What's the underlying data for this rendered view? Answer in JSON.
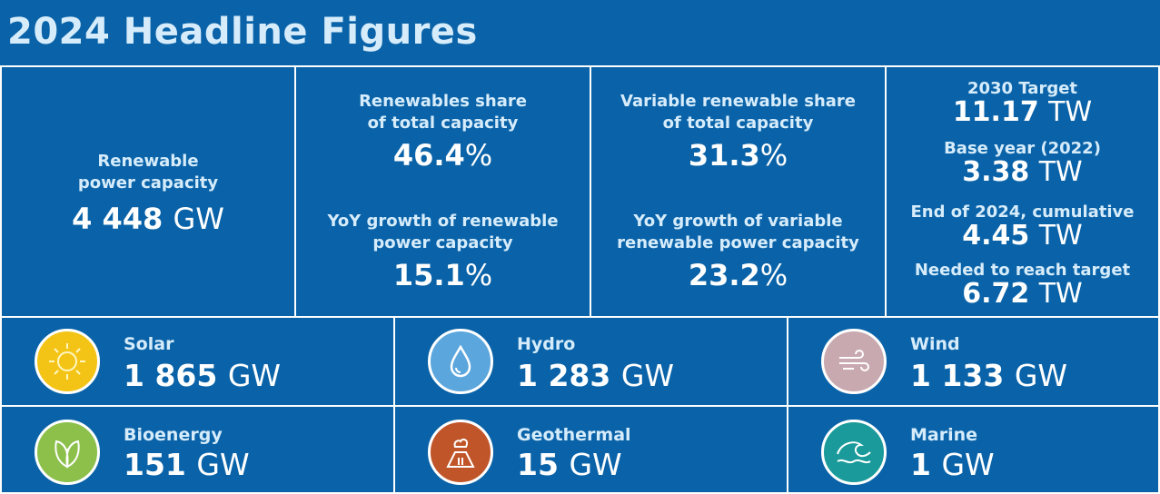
{
  "title": "2024 Headline Figures",
  "capacity": {
    "label_line1": "Renewable",
    "label_line2": "power capacity",
    "value": "4 448",
    "unit": "GW"
  },
  "share": {
    "label_line1": "Renewables share",
    "label_line2": "of total capacity",
    "value": "46.4",
    "unit": "%",
    "growth_label_line1": "YoY growth of renewable",
    "growth_label_line2": "power capacity",
    "growth_value": "15.1",
    "growth_unit": "%"
  },
  "variable": {
    "label_line1": "Variable renewable share",
    "label_line2": "of total capacity",
    "value": "31.3",
    "unit": "%",
    "growth_label_line1": "YoY growth of variable",
    "growth_label_line2": "renewable power capacity",
    "growth_value": "23.2",
    "growth_unit": "%"
  },
  "targets": [
    {
      "label": "2030 Target",
      "value": "11.17",
      "unit": "TW"
    },
    {
      "label": "Base year (2022)",
      "value": "3.38",
      "unit": "TW"
    },
    {
      "label": "End of 2024, cumulative",
      "value": "4.45",
      "unit": "TW"
    },
    {
      "label": "Needed to reach target",
      "value": "6.72",
      "unit": "TW"
    }
  ],
  "sources": [
    {
      "name": "Solar",
      "value": "1 865",
      "unit": "GW",
      "icon": "sun-icon",
      "color": "#f3c316"
    },
    {
      "name": "Hydro",
      "value": "1 283",
      "unit": "GW",
      "icon": "water-drop-icon",
      "color": "#5aa6dd"
    },
    {
      "name": "Wind",
      "value": "1 133",
      "unit": "GW",
      "icon": "wind-icon",
      "color": "#c9a9b0"
    },
    {
      "name": "Bioenergy",
      "value": "151",
      "unit": "GW",
      "icon": "leaf-icon",
      "color": "#8cc04b"
    },
    {
      "name": "Geothermal",
      "value": "15",
      "unit": "GW",
      "icon": "volcano-icon",
      "color": "#c0552a"
    },
    {
      "name": "Marine",
      "value": "1",
      "unit": "GW",
      "icon": "wave-icon",
      "color": "#1a9a9a"
    }
  ]
}
